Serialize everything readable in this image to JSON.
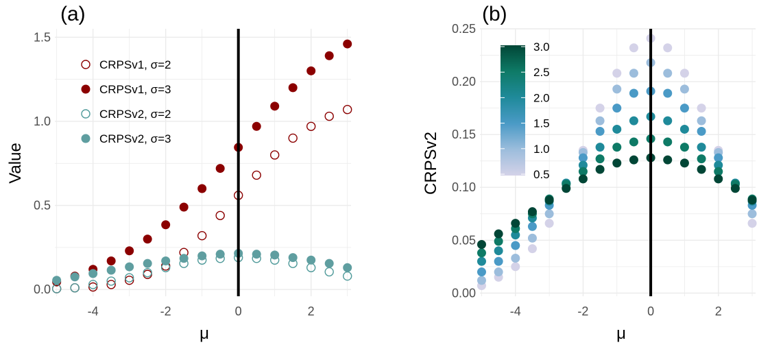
{
  "chart_data": [
    {
      "panel_label": "(a)",
      "type": "scatter",
      "xlabel": "μ",
      "ylabel": "Value",
      "xlim": [
        -5.05,
        3.1
      ],
      "ylim": [
        -0.04,
        1.55
      ],
      "xticks": [
        -4,
        -2,
        0,
        2
      ],
      "xtick_labels": [
        "-4",
        "-2",
        "0",
        "2"
      ],
      "yticks": [
        0.0,
        0.5,
        1.0,
        1.5
      ],
      "ytick_labels": [
        "0.0",
        "0.5",
        "1.0",
        "1.5"
      ],
      "grid": true,
      "vline_x": 0,
      "legend_placement": "top-left",
      "x": [
        -5,
        -4.5,
        -4,
        -3.5,
        -3,
        -2.5,
        -2,
        -1.5,
        -1,
        -0.5,
        0,
        0.5,
        1,
        1.5,
        2,
        2.5,
        3
      ],
      "series": [
        {
          "name": "CRPSv1, σ=2",
          "color": "#8b0000",
          "filled": false,
          "values": [
            0.005,
            0.01,
            0.015,
            0.03,
            0.055,
            0.09,
            0.14,
            0.22,
            0.32,
            0.44,
            0.56,
            0.68,
            0.8,
            0.9,
            0.97,
            1.03,
            1.07
          ]
        },
        {
          "name": "CRPSv1, σ=3",
          "color": "#8b0000",
          "filled": true,
          "values": [
            0.045,
            0.08,
            0.12,
            0.17,
            0.23,
            0.3,
            0.385,
            0.49,
            0.6,
            0.72,
            0.845,
            0.97,
            1.09,
            1.2,
            1.3,
            1.39,
            1.46
          ]
        },
        {
          "name": "CRPSv2, σ=2",
          "color": "#4f9a9a",
          "filled": false,
          "values": [
            0.005,
            0.01,
            0.03,
            0.05,
            0.07,
            0.1,
            0.13,
            0.155,
            0.175,
            0.185,
            0.19,
            0.185,
            0.175,
            0.155,
            0.13,
            0.105,
            0.08
          ]
        },
        {
          "name": "CRPSv2, σ=3",
          "color": "#5f9ea0",
          "filled": true,
          "values": [
            0.055,
            0.075,
            0.095,
            0.115,
            0.135,
            0.155,
            0.17,
            0.185,
            0.2,
            0.21,
            0.215,
            0.21,
            0.205,
            0.19,
            0.175,
            0.155,
            0.13
          ]
        }
      ]
    },
    {
      "panel_label": "(b)",
      "type": "scatter",
      "xlabel": "μ",
      "ylabel": "CRPSv2",
      "xlim": [
        -5.05,
        3.1
      ],
      "ylim": [
        -0.003,
        0.25
      ],
      "xticks": [
        -4,
        -2,
        0,
        2
      ],
      "xtick_labels": [
        "-4",
        "-2",
        "0",
        "2"
      ],
      "yticks": [
        0.0,
        0.05,
        0.1,
        0.15,
        0.2,
        0.25
      ],
      "ytick_labels": [
        "0.00",
        "0.05",
        "0.10",
        "0.15",
        "0.20",
        "0.25"
      ],
      "grid": true,
      "vline_x": 0,
      "legend_placement": "top-left",
      "colorbar": {
        "min": 0.5,
        "max": 3.0,
        "ticks": [
          0.5,
          1.0,
          1.5,
          2.0,
          2.5,
          3.0
        ],
        "tick_labels": [
          "0.5",
          "1.0",
          "1.5",
          "2.0",
          "2.5",
          "3.0"
        ],
        "colors": [
          "#d4d2e8",
          "#9cbddc",
          "#4a9ac6",
          "#1f8a9a",
          "#0e7a66",
          "#014636"
        ]
      },
      "x": [
        -5,
        -4.5,
        -4,
        -3.5,
        -3,
        -2.5,
        -2,
        -1.5,
        -1,
        -0.5,
        0,
        0.5,
        1,
        1.5,
        2,
        2.5,
        3
      ],
      "series": [
        {
          "sigma": 0.5,
          "values": [
            0.007,
            0.015,
            0.025,
            0.042,
            0.066,
            0.1,
            0.135,
            0.175,
            0.208,
            0.232,
            0.241,
            0.232,
            0.208,
            0.175,
            0.135,
            0.1,
            0.066
          ]
        },
        {
          "sigma": 1.0,
          "values": [
            0.012,
            0.02,
            0.033,
            0.052,
            0.075,
            0.104,
            0.133,
            0.163,
            0.193,
            0.208,
            0.218,
            0.208,
            0.193,
            0.163,
            0.133,
            0.104,
            0.075
          ]
        },
        {
          "sigma": 1.5,
          "values": [
            0.02,
            0.03,
            0.045,
            0.063,
            0.083,
            0.104,
            0.128,
            0.153,
            0.175,
            0.189,
            0.191,
            0.189,
            0.175,
            0.153,
            0.128,
            0.104,
            0.083
          ]
        },
        {
          "sigma": 2.0,
          "values": [
            0.03,
            0.04,
            0.055,
            0.071,
            0.087,
            0.104,
            0.121,
            0.138,
            0.155,
            0.163,
            0.167,
            0.163,
            0.155,
            0.138,
            0.121,
            0.104,
            0.087
          ]
        },
        {
          "sigma": 2.5,
          "values": [
            0.038,
            0.049,
            0.061,
            0.075,
            0.089,
            0.103,
            0.115,
            0.127,
            0.138,
            0.143,
            0.146,
            0.143,
            0.138,
            0.127,
            0.115,
            0.103,
            0.089
          ]
        },
        {
          "sigma": 3.0,
          "values": [
            0.046,
            0.056,
            0.066,
            0.077,
            0.088,
            0.099,
            0.108,
            0.117,
            0.123,
            0.126,
            0.128,
            0.126,
            0.123,
            0.117,
            0.108,
            0.099,
            0.088
          ]
        }
      ]
    }
  ]
}
